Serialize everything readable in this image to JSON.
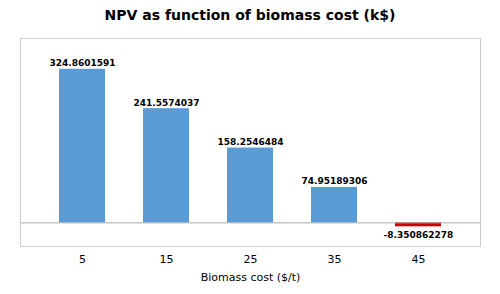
{
  "chart_data": {
    "type": "bar",
    "title": "NPV as function of biomass cost (k$)",
    "xlabel": "Biomass cost ($/t)",
    "categories": [
      "5",
      "15",
      "25",
      "35",
      "45"
    ],
    "values": [
      324.8601591,
      241.5574037,
      158.2546484,
      74.95189306,
      -8.350862278
    ],
    "colors": [
      "#5B9BD5",
      "#5B9BD5",
      "#5B9BD5",
      "#5B9BD5",
      "#CC0000"
    ],
    "ylim": [
      -50,
      390
    ],
    "grid": false,
    "data_labels": true,
    "tick_labels": "x"
  }
}
